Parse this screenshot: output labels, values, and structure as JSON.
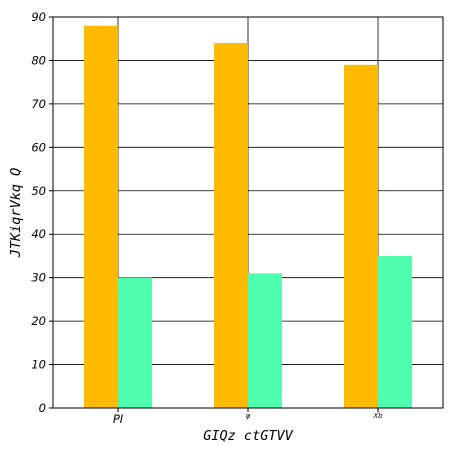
{
  "chart_data": {
    "type": "bar",
    "categories": [
      "PI",
      "φ",
      "Xb"
    ],
    "series": [
      {
        "values": [
          88,
          84,
          79
        ],
        "color": "#ffbb00"
      },
      {
        "values": [
          30,
          31,
          35
        ],
        "color": "#4dffaf"
      }
    ],
    "xlabel": "GIQz ctGTVV",
    "ylabel": "JTKiqrVkq Q",
    "ylim": [
      0,
      90
    ],
    "yticks": [
      0,
      10,
      20,
      30,
      40,
      50,
      60,
      70,
      80,
      90
    ],
    "grid": true
  }
}
